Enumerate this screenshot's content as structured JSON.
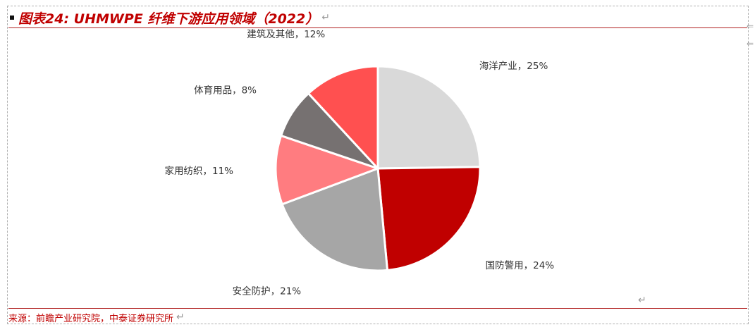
{
  "title": "图表24: UHMWPE 纤维下游应用领域（2022）",
  "source": "来源：前瞻产业研究院，中泰证券研究所",
  "colors": {
    "title_red": "#c00000",
    "rule_red": "#b22222"
  },
  "chart_data": {
    "type": "pie",
    "title": "",
    "slices": [
      {
        "label": "海洋产业",
        "value": 25,
        "color": "#d9d9d9"
      },
      {
        "label": "国防警用",
        "value": 24,
        "color": "#c00000"
      },
      {
        "label": "安全防护",
        "value": 21,
        "color": "#a6a6a6"
      },
      {
        "label": "家用纺织",
        "value": 11,
        "color": "#ff7c80"
      },
      {
        "label": "体育用品",
        "value": 8,
        "color": "#767171"
      },
      {
        "label": "建筑及其他",
        "value": 12,
        "color": "#ff5050"
      }
    ],
    "label_format": "{label}，{value}%",
    "start_angle": "12 o'clock",
    "direction": "clockwise",
    "legend": "none"
  }
}
